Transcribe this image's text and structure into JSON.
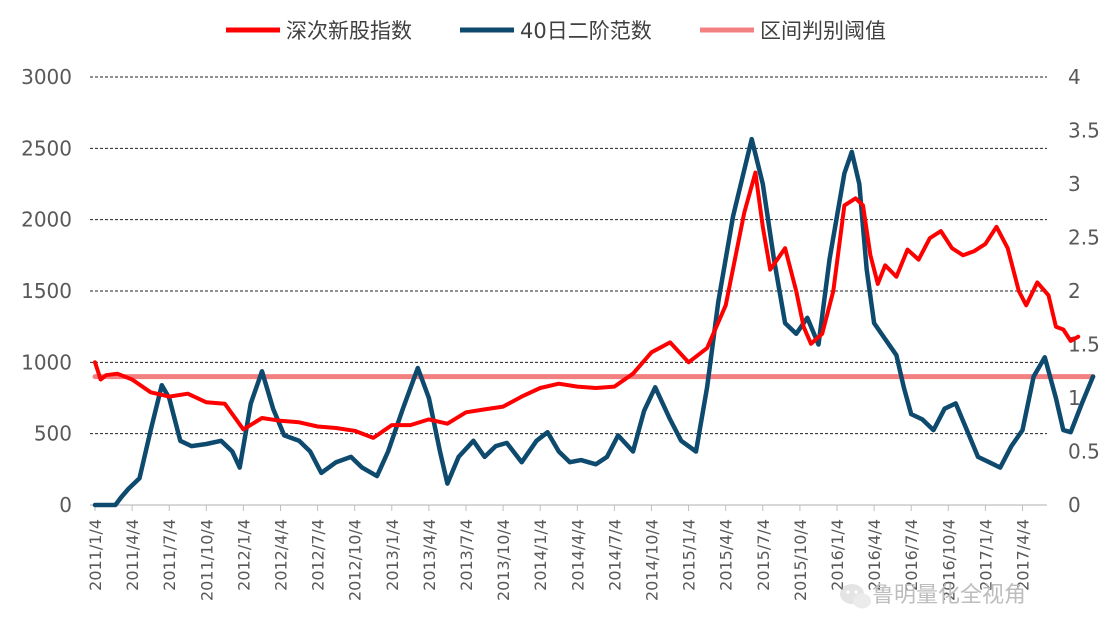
{
  "chart_data": {
    "type": "line",
    "legend": {
      "placement": "top",
      "items": [
        {
          "label": "深次新股指数",
          "color": "#ff0000"
        },
        {
          "label": "40日二阶范数",
          "color": "#0d4a6e"
        },
        {
          "label": "区间判别阈值",
          "color": "#f28080"
        }
      ]
    },
    "y_left": {
      "ticks": [
        "0",
        "500",
        "1000",
        "1500",
        "2000",
        "2500",
        "3000"
      ],
      "range": [
        0,
        3000
      ]
    },
    "y_right": {
      "ticks": [
        "0",
        "0.5",
        "1",
        "1.5",
        "2",
        "2.5",
        "3",
        "3.5",
        "4"
      ],
      "range": [
        0,
        4
      ]
    },
    "x_ticks": [
      "2011/1/4",
      "2011/4/4",
      "2011/7/4",
      "2011/10/4",
      "2012/1/4",
      "2012/4/4",
      "2012/7/4",
      "2012/10/4",
      "2013/1/4",
      "2013/4/4",
      "2013/7/4",
      "2013/10/4",
      "2014/1/4",
      "2014/4/4",
      "2014/7/4",
      "2014/10/4",
      "2015/1/4",
      "2015/4/4",
      "2015/7/4",
      "2015/10/4",
      "2016/1/4",
      "2016/4/4",
      "2016/7/4",
      "2016/10/4",
      "2017/1/4",
      "2017/4/4"
    ],
    "grid": "horizontal dashed",
    "series": [
      {
        "name": "深次新股指数",
        "axis": "left",
        "color": "#ff0000",
        "points": [
          [
            0,
            1000
          ],
          [
            0.15,
            880
          ],
          [
            0.3,
            910
          ],
          [
            0.6,
            920
          ],
          [
            1,
            880
          ],
          [
            1.5,
            790
          ],
          [
            2,
            760
          ],
          [
            2.5,
            780
          ],
          [
            3,
            720
          ],
          [
            3.5,
            710
          ],
          [
            4,
            530
          ],
          [
            4.5,
            610
          ],
          [
            5,
            590
          ],
          [
            5.5,
            580
          ],
          [
            6,
            550
          ],
          [
            6.5,
            540
          ],
          [
            7,
            520
          ],
          [
            7.5,
            470
          ],
          [
            8,
            560
          ],
          [
            8.5,
            560
          ],
          [
            9,
            600
          ],
          [
            9.5,
            570
          ],
          [
            10,
            650
          ],
          [
            10.5,
            670
          ],
          [
            11,
            690
          ],
          [
            11.5,
            760
          ],
          [
            12,
            820
          ],
          [
            12.5,
            850
          ],
          [
            13,
            830
          ],
          [
            13.5,
            820
          ],
          [
            14,
            830
          ],
          [
            14.5,
            920
          ],
          [
            15,
            1070
          ],
          [
            15.5,
            1140
          ],
          [
            16,
            1000
          ],
          [
            16.5,
            1100
          ],
          [
            17,
            1400
          ],
          [
            17.5,
            2050
          ],
          [
            17.8,
            2330
          ],
          [
            18,
            1950
          ],
          [
            18.2,
            1650
          ],
          [
            18.6,
            1800
          ],
          [
            18.9,
            1500
          ],
          [
            19.1,
            1250
          ],
          [
            19.3,
            1130
          ],
          [
            19.6,
            1200
          ],
          [
            19.9,
            1500
          ],
          [
            20.2,
            2100
          ],
          [
            20.5,
            2150
          ],
          [
            20.7,
            2100
          ],
          [
            20.9,
            1750
          ],
          [
            21.1,
            1550
          ],
          [
            21.3,
            1680
          ],
          [
            21.6,
            1600
          ],
          [
            21.9,
            1790
          ],
          [
            22.2,
            1720
          ],
          [
            22.5,
            1870
          ],
          [
            22.8,
            1920
          ],
          [
            23.1,
            1800
          ],
          [
            23.4,
            1750
          ],
          [
            23.7,
            1780
          ],
          [
            24,
            1830
          ],
          [
            24.3,
            1950
          ],
          [
            24.6,
            1800
          ],
          [
            24.9,
            1500
          ],
          [
            25.1,
            1400
          ],
          [
            25.4,
            1560
          ],
          [
            25.7,
            1470
          ],
          [
            25.9,
            1250
          ],
          [
            26.1,
            1230
          ],
          [
            26.3,
            1150
          ],
          [
            26.5,
            1180
          ]
        ]
      },
      {
        "name": "40日二阶范数",
        "axis": "right",
        "color": "#0d4a6e",
        "points": [
          [
            0,
            0
          ],
          [
            0.3,
            0
          ],
          [
            0.55,
            0
          ],
          [
            0.7,
            0.07
          ],
          [
            0.9,
            0.15
          ],
          [
            1.2,
            0.25
          ],
          [
            1.5,
            0.7
          ],
          [
            1.8,
            1.12
          ],
          [
            2.0,
            1.0
          ],
          [
            2.3,
            0.6
          ],
          [
            2.6,
            0.55
          ],
          [
            3.0,
            0.57
          ],
          [
            3.4,
            0.6
          ],
          [
            3.7,
            0.5
          ],
          [
            3.9,
            0.35
          ],
          [
            4.2,
            0.95
          ],
          [
            4.5,
            1.25
          ],
          [
            4.8,
            0.9
          ],
          [
            5.1,
            0.65
          ],
          [
            5.5,
            0.6
          ],
          [
            5.8,
            0.5
          ],
          [
            6.1,
            0.3
          ],
          [
            6.5,
            0.4
          ],
          [
            6.9,
            0.45
          ],
          [
            7.2,
            0.35
          ],
          [
            7.6,
            0.27
          ],
          [
            7.9,
            0.5
          ],
          [
            8.3,
            0.9
          ],
          [
            8.7,
            1.28
          ],
          [
            9.0,
            1.0
          ],
          [
            9.3,
            0.5
          ],
          [
            9.5,
            0.2
          ],
          [
            9.8,
            0.45
          ],
          [
            10.2,
            0.6
          ],
          [
            10.5,
            0.45
          ],
          [
            10.8,
            0.55
          ],
          [
            11.1,
            0.58
          ],
          [
            11.5,
            0.4
          ],
          [
            11.9,
            0.6
          ],
          [
            12.2,
            0.68
          ],
          [
            12.5,
            0.5
          ],
          [
            12.8,
            0.4
          ],
          [
            13.1,
            0.42
          ],
          [
            13.5,
            0.38
          ],
          [
            13.8,
            0.45
          ],
          [
            14.1,
            0.65
          ],
          [
            14.5,
            0.5
          ],
          [
            14.8,
            0.88
          ],
          [
            15.1,
            1.1
          ],
          [
            15.5,
            0.8
          ],
          [
            15.8,
            0.6
          ],
          [
            16.2,
            0.5
          ],
          [
            16.5,
            1.1
          ],
          [
            16.8,
            1.9
          ],
          [
            17.2,
            2.7
          ],
          [
            17.7,
            3.42
          ],
          [
            18.0,
            3.0
          ],
          [
            18.3,
            2.3
          ],
          [
            18.6,
            1.7
          ],
          [
            18.9,
            1.6
          ],
          [
            19.2,
            1.75
          ],
          [
            19.5,
            1.5
          ],
          [
            19.8,
            2.3
          ],
          [
            20.2,
            3.1
          ],
          [
            20.4,
            3.3
          ],
          [
            20.6,
            3.0
          ],
          [
            20.8,
            2.2
          ],
          [
            21.0,
            1.7
          ],
          [
            21.3,
            1.55
          ],
          [
            21.6,
            1.4
          ],
          [
            21.8,
            1.1
          ],
          [
            22.0,
            0.85
          ],
          [
            22.3,
            0.8
          ],
          [
            22.6,
            0.7
          ],
          [
            22.9,
            0.9
          ],
          [
            23.2,
            0.95
          ],
          [
            23.5,
            0.7
          ],
          [
            23.8,
            0.45
          ],
          [
            24.1,
            0.4
          ],
          [
            24.4,
            0.35
          ],
          [
            24.7,
            0.55
          ],
          [
            25.0,
            0.7
          ],
          [
            25.3,
            1.2
          ],
          [
            25.6,
            1.38
          ],
          [
            25.9,
            1.0
          ],
          [
            26.1,
            0.7
          ],
          [
            26.3,
            0.68
          ],
          [
            26.6,
            0.95
          ],
          [
            26.9,
            1.2
          ]
        ]
      },
      {
        "name": "区间判别阈值",
        "axis": "right",
        "color": "#f28080",
        "points": [
          [
            0,
            1.2
          ],
          [
            26.9,
            1.2
          ]
        ]
      }
    ]
  },
  "watermark": {
    "text": "鲁明量化全视角"
  }
}
